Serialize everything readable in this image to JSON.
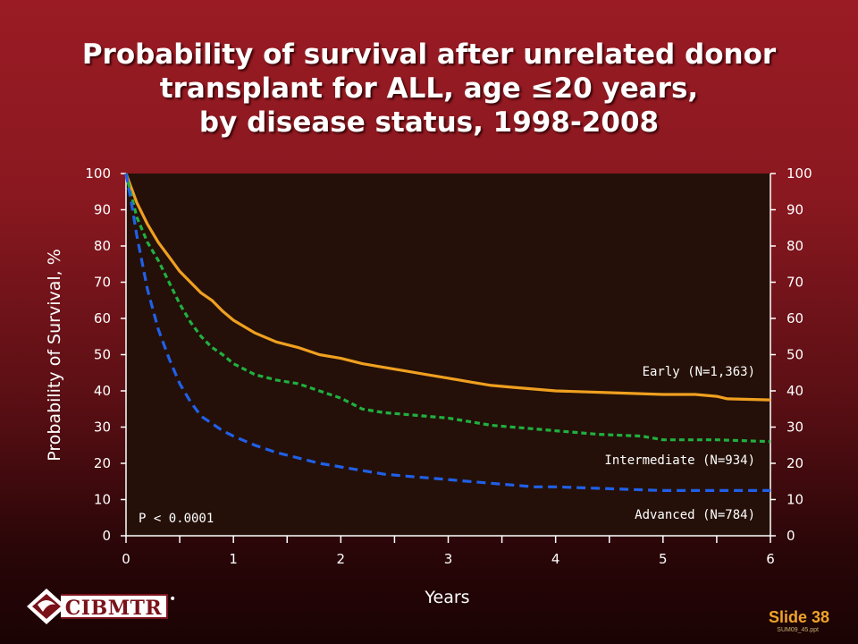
{
  "slide": {
    "title_lines": [
      "Probability of survival after unrelated donor",
      "transplant for ALL, age ≤20 years,",
      "by disease status, 1998-2008"
    ],
    "slide_number": "Slide 38",
    "file_ref": "SUM09_45.ppt",
    "logo_text": "CIBMTR"
  },
  "colors": {
    "early": "#f0a020",
    "intermediate": "#20b040",
    "advanced": "#2060e8",
    "plot_bg": "#241008"
  },
  "chart_data": {
    "type": "line",
    "xlabel": "Years",
    "ylabel": "Probability of Survival, %",
    "xlim": [
      0,
      6
    ],
    "ylim": [
      0,
      100
    ],
    "x_ticks": [
      "0",
      "1",
      "2",
      "3",
      "4",
      "5",
      "6"
    ],
    "y_ticks": [
      "0",
      "10",
      "20",
      "30",
      "40",
      "50",
      "60",
      "70",
      "80",
      "90",
      "100"
    ],
    "grid": false,
    "annotation": "P < 0.0001",
    "series": [
      {
        "name": "Early (N=1,363)",
        "style": "solid",
        "color": "#f0a020",
        "points": [
          [
            0,
            100
          ],
          [
            0.1,
            92
          ],
          [
            0.2,
            86
          ],
          [
            0.3,
            81
          ],
          [
            0.4,
            77
          ],
          [
            0.5,
            73
          ],
          [
            0.6,
            70
          ],
          [
            0.7,
            67
          ],
          [
            0.8,
            65
          ],
          [
            0.9,
            62
          ],
          [
            1.0,
            59.5
          ],
          [
            1.2,
            56
          ],
          [
            1.4,
            53.5
          ],
          [
            1.6,
            52
          ],
          [
            1.8,
            50
          ],
          [
            2.0,
            49
          ],
          [
            2.2,
            47.5
          ],
          [
            2.4,
            46.5
          ],
          [
            2.6,
            45.5
          ],
          [
            2.8,
            44.5
          ],
          [
            3.0,
            43.5
          ],
          [
            3.2,
            42.5
          ],
          [
            3.4,
            41.5
          ],
          [
            3.6,
            41
          ],
          [
            3.8,
            40.5
          ],
          [
            4.0,
            40
          ],
          [
            4.5,
            39.5
          ],
          [
            5.0,
            39
          ],
          [
            5.3,
            39
          ],
          [
            5.5,
            38.5
          ],
          [
            5.6,
            37.8
          ],
          [
            6.0,
            37.5
          ]
        ]
      },
      {
        "name": "Intermediate (N=934)",
        "style": "dashed",
        "color": "#20b040",
        "points": [
          [
            0,
            100
          ],
          [
            0.1,
            88
          ],
          [
            0.2,
            81
          ],
          [
            0.3,
            76
          ],
          [
            0.4,
            70
          ],
          [
            0.5,
            64
          ],
          [
            0.6,
            59
          ],
          [
            0.7,
            55
          ],
          [
            0.8,
            52
          ],
          [
            0.9,
            50
          ],
          [
            1.0,
            47.5
          ],
          [
            1.2,
            44.5
          ],
          [
            1.4,
            43
          ],
          [
            1.6,
            42
          ],
          [
            1.8,
            40
          ],
          [
            2.0,
            38
          ],
          [
            2.2,
            35
          ],
          [
            2.4,
            34
          ],
          [
            2.6,
            33.5
          ],
          [
            2.8,
            33
          ],
          [
            3.0,
            32.5
          ],
          [
            3.2,
            31.5
          ],
          [
            3.4,
            30.5
          ],
          [
            3.6,
            30
          ],
          [
            3.8,
            29.5
          ],
          [
            4.0,
            29
          ],
          [
            4.4,
            28
          ],
          [
            4.8,
            27.5
          ],
          [
            5.0,
            26.5
          ],
          [
            5.5,
            26.5
          ],
          [
            6.0,
            26
          ]
        ]
      },
      {
        "name": "Advanced (N=784)",
        "style": "dashed",
        "color": "#2060e8",
        "points": [
          [
            0,
            100
          ],
          [
            0.05,
            92
          ],
          [
            0.1,
            83
          ],
          [
            0.2,
            68
          ],
          [
            0.3,
            57
          ],
          [
            0.4,
            49
          ],
          [
            0.5,
            42
          ],
          [
            0.6,
            37
          ],
          [
            0.7,
            33
          ],
          [
            0.8,
            31
          ],
          [
            0.9,
            29
          ],
          [
            1.0,
            27.5
          ],
          [
            1.2,
            25
          ],
          [
            1.4,
            23
          ],
          [
            1.6,
            21.5
          ],
          [
            1.8,
            20
          ],
          [
            2.0,
            19
          ],
          [
            2.2,
            18
          ],
          [
            2.4,
            17
          ],
          [
            2.6,
            16.5
          ],
          [
            2.8,
            16
          ],
          [
            3.0,
            15.5
          ],
          [
            3.2,
            15
          ],
          [
            3.4,
            14.5
          ],
          [
            3.6,
            14
          ],
          [
            3.8,
            13.5
          ],
          [
            4.0,
            13.5
          ],
          [
            4.5,
            13
          ],
          [
            5.0,
            12.5
          ],
          [
            6.0,
            12.5
          ]
        ]
      }
    ]
  }
}
